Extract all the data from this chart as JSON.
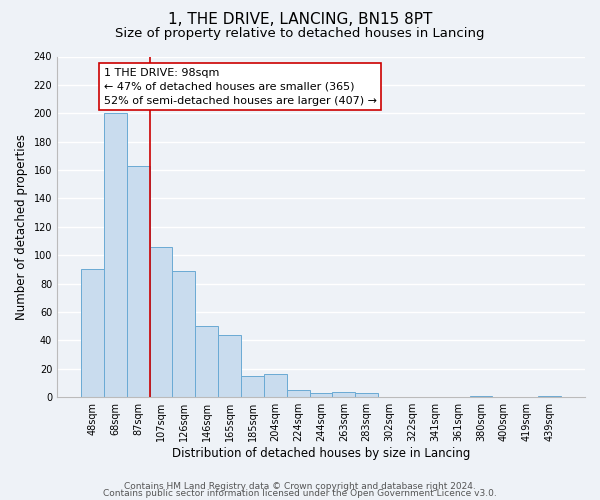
{
  "title": "1, THE DRIVE, LANCING, BN15 8PT",
  "subtitle": "Size of property relative to detached houses in Lancing",
  "xlabel": "Distribution of detached houses by size in Lancing",
  "ylabel": "Number of detached properties",
  "bar_labels": [
    "48sqm",
    "68sqm",
    "87sqm",
    "107sqm",
    "126sqm",
    "146sqm",
    "165sqm",
    "185sqm",
    "204sqm",
    "224sqm",
    "244sqm",
    "263sqm",
    "283sqm",
    "302sqm",
    "322sqm",
    "341sqm",
    "361sqm",
    "380sqm",
    "400sqm",
    "419sqm",
    "439sqm"
  ],
  "bar_values": [
    90,
    200,
    163,
    106,
    89,
    50,
    44,
    15,
    16,
    5,
    3,
    4,
    3,
    0,
    0,
    0,
    0,
    1,
    0,
    0,
    1
  ],
  "bar_color": "#c9dcee",
  "bar_edge_color": "#6aaad4",
  "vline_x": 2.5,
  "vline_color": "#cc0000",
  "annotation_line1": "1 THE DRIVE: 98sqm",
  "annotation_line2": "← 47% of detached houses are smaller (365)",
  "annotation_line3": "52% of semi-detached houses are larger (407) →",
  "annotation_box_color": "#ffffff",
  "annotation_box_edge_color": "#cc0000",
  "ylim": [
    0,
    240
  ],
  "yticks": [
    0,
    20,
    40,
    60,
    80,
    100,
    120,
    140,
    160,
    180,
    200,
    220,
    240
  ],
  "footer1": "Contains HM Land Registry data © Crown copyright and database right 2024.",
  "footer2": "Contains public sector information licensed under the Open Government Licence v3.0.",
  "background_color": "#eef2f7",
  "grid_color": "#ffffff",
  "title_fontsize": 11,
  "subtitle_fontsize": 9.5,
  "axis_label_fontsize": 8.5,
  "tick_fontsize": 7,
  "annotation_fontsize": 8,
  "footer_fontsize": 6.5
}
